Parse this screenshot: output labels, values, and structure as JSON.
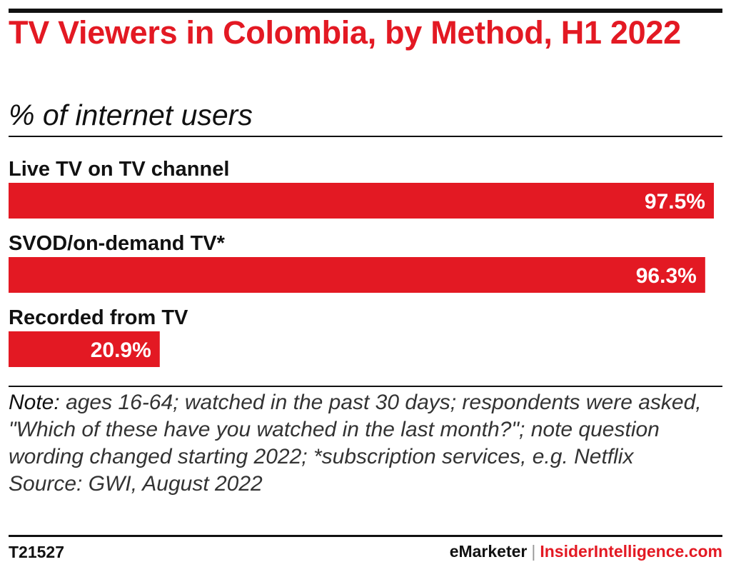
{
  "chart_data": {
    "type": "bar",
    "orientation": "horizontal",
    "title": "TV Viewers in Colombia, by Method, H1 2022",
    "subtitle": "% of internet users",
    "categories": [
      "Live TV on TV channel",
      "SVOD/on-demand TV*",
      "Recorded from TV"
    ],
    "values": [
      97.5,
      96.3,
      20.9
    ],
    "value_labels": [
      "97.5%",
      "96.3%",
      "20.9%"
    ],
    "xlim": [
      0,
      97.5
    ],
    "bar_color": "#e31923",
    "grid": false,
    "legend": "none"
  },
  "note": {
    "lead": "Note:",
    "text": "ages 16-64; watched in the past 30 days; respondents were asked, \"Which of these have you watched in the last month?\"; note question wording changed starting 2022; *subscription services, e.g. Netflix",
    "source": "Source: GWI, August 2022"
  },
  "footer": {
    "chart_id": "T21527",
    "brand": "eMarketer",
    "separator": "|",
    "site": "InsiderIntelligence.com"
  }
}
